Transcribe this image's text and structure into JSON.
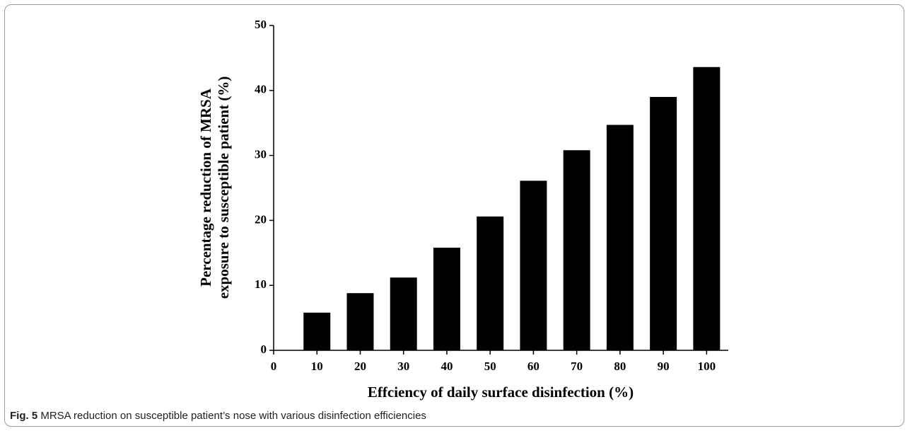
{
  "chart_data": {
    "type": "bar",
    "x_label": "Effciency of daily surface disinfection (%)",
    "y_label": [
      "Percentage reduction of MRSA",
      "exposure to susceptible patient (%)"
    ],
    "x": [
      10,
      20,
      30,
      40,
      50,
      60,
      70,
      80,
      90,
      100
    ],
    "values": [
      5.8,
      8.8,
      11.2,
      15.8,
      20.6,
      26.1,
      30.8,
      34.7,
      39.0,
      43.6
    ],
    "color": "#000000",
    "xlim": [
      0,
      105
    ],
    "xticks": [
      0,
      10,
      20,
      30,
      40,
      50,
      60,
      70,
      80,
      90,
      100
    ],
    "ylim": [
      0,
      50
    ],
    "yticks": [
      0,
      10,
      20,
      30,
      40,
      50
    ],
    "grid": false
  },
  "caption": {
    "label": "Fig. 5",
    "text": "MRSA reduction on susceptible patient’s nose with various disinfection efficiencies"
  }
}
